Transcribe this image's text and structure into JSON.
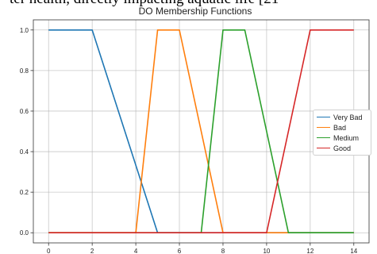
{
  "caption": "ter health, directly impacting aquatic life [21",
  "chart_data": {
    "type": "line",
    "title": "DO Membership Functions",
    "xlabel": "",
    "ylabel": "",
    "xlim": [
      -0.7,
      14.7
    ],
    "ylim": [
      -0.05,
      1.05
    ],
    "xticks": [
      0,
      2,
      4,
      6,
      8,
      10,
      12,
      14
    ],
    "yticks": [
      0.0,
      0.2,
      0.4,
      0.6,
      0.8,
      1.0
    ],
    "xtick_labels": [
      "0",
      "2",
      "4",
      "6",
      "8",
      "10",
      "12",
      "14"
    ],
    "ytick_labels": [
      "0.0",
      "0.2",
      "0.4",
      "0.6",
      "0.8",
      "1.0"
    ],
    "grid": true,
    "legend_position": "center-right",
    "series": [
      {
        "name": "Very Bad",
        "color": "#1f77b4",
        "x": [
          0,
          2,
          5,
          14
        ],
        "y": [
          1,
          1,
          0,
          0
        ]
      },
      {
        "name": "Bad",
        "color": "#ff7f0e",
        "x": [
          0,
          4,
          5,
          6,
          8,
          14
        ],
        "y": [
          0,
          0,
          1,
          1,
          0,
          0
        ]
      },
      {
        "name": "Medium",
        "color": "#2ca02c",
        "x": [
          0,
          7,
          8,
          9,
          11,
          14
        ],
        "y": [
          0,
          0,
          1,
          1,
          0,
          0
        ]
      },
      {
        "name": "Good",
        "color": "#d62728",
        "x": [
          0,
          10,
          12,
          14
        ],
        "y": [
          0,
          0,
          1,
          1
        ]
      }
    ]
  }
}
